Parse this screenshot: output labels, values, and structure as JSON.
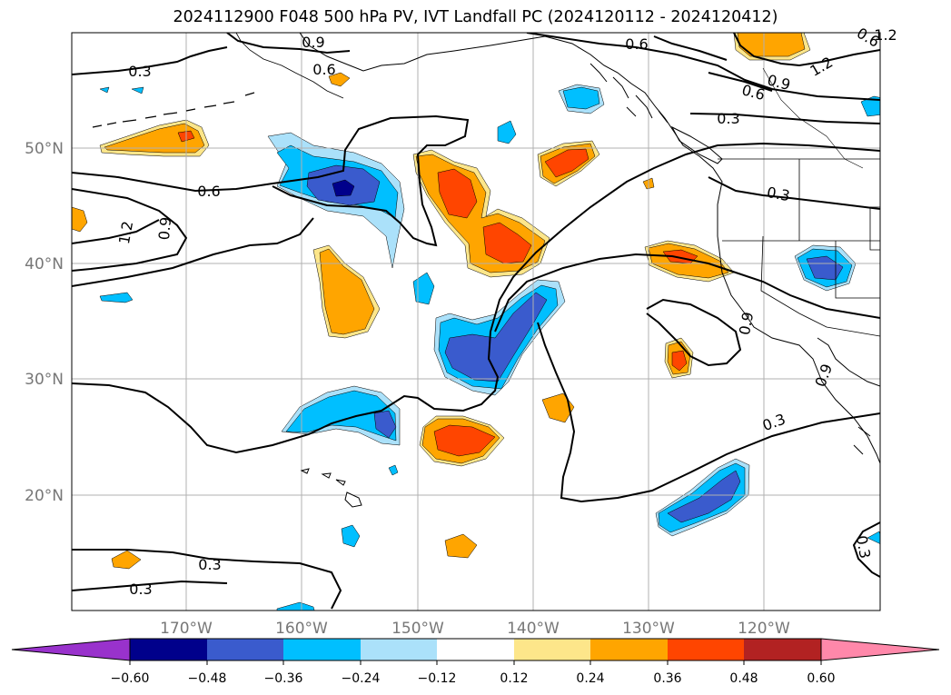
{
  "title": "2024112900 F048 500 hPa PV, IVT Landfall PC (2024120112 - 2024120412)",
  "map": {
    "lat_labels": [
      "50°N",
      "40°N",
      "30°N",
      "20°N"
    ],
    "lon_labels": [
      "170°W",
      "160°W",
      "150°W",
      "140°W",
      "130°W",
      "120°W"
    ],
    "contour_labels": [
      "0.3",
      "0.6",
      "0.9",
      "1.2",
      "0.6",
      "0.9",
      "0.6",
      "0.9",
      "1.2",
      "0.6",
      "0.3",
      "0.3",
      "0.6",
      "0.9",
      "1.2",
      "0.3",
      "0.3",
      "0.3",
      "0.3",
      "0.9",
      "0.6",
      "0.3",
      "0.3"
    ],
    "colors": {
      "coast": "#000000",
      "contour": "#000000",
      "grid": "#b0b0b0"
    }
  },
  "colorbar": {
    "colors": [
      "#9932cc",
      "#00008b",
      "#3a5bcd",
      "#00bfff",
      "#abe1fa",
      "#ffffff",
      "#fde68a",
      "#ffa500",
      "#ff4500",
      "#b22222",
      "#ff88aa"
    ],
    "tick_labels": [
      "−0.60",
      "−0.48",
      "−0.36",
      "−0.24",
      "−0.12",
      "0.12",
      "0.24",
      "0.36",
      "0.48",
      "0.60"
    ]
  }
}
